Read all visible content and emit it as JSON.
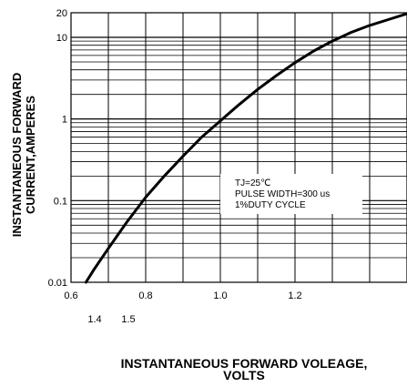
{
  "chart_data": {
    "type": "line",
    "title": "",
    "xlabel": "INSTANTANEOUS FORWARD VOLEAGE,",
    "xlabel_line2": "VOLTS",
    "ylabel": "INSTANTANEOUS FORWARD",
    "ylabel_line2": "CURRENT,AMPERES",
    "xlim": [
      0.6,
      1.5
    ],
    "ylim": [
      0.01,
      20
    ],
    "y_scale": "log",
    "grid": true,
    "x_ticks": [
      "0.6",
      "0.8",
      "1.0",
      "1.2"
    ],
    "x_ticks_second_row": [
      "1.4",
      "1.5"
    ],
    "y_ticks": [
      "20",
      "10",
      "1",
      "0.1",
      "0.01"
    ],
    "series": [
      {
        "x": [
          0.64,
          0.66,
          0.7,
          0.75,
          0.8,
          0.85,
          0.9,
          0.95,
          1.0,
          1.05,
          1.1,
          1.15,
          1.2,
          1.25,
          1.3,
          1.35,
          1.4,
          1.45,
          1.5
        ],
        "y": [
          0.01,
          0.014,
          0.026,
          0.055,
          0.11,
          0.2,
          0.35,
          0.6,
          0.95,
          1.5,
          2.3,
          3.4,
          4.9,
          6.8,
          9.0,
          11.5,
          14,
          16.5,
          19.5
        ]
      }
    ],
    "legend": {
      "placement": "middle-right",
      "lines": [
        "TJ=25℃",
        "PULSE WIDTH=300 us",
        "1%DUTY CYCLE"
      ]
    },
    "line_color": "#000000"
  }
}
